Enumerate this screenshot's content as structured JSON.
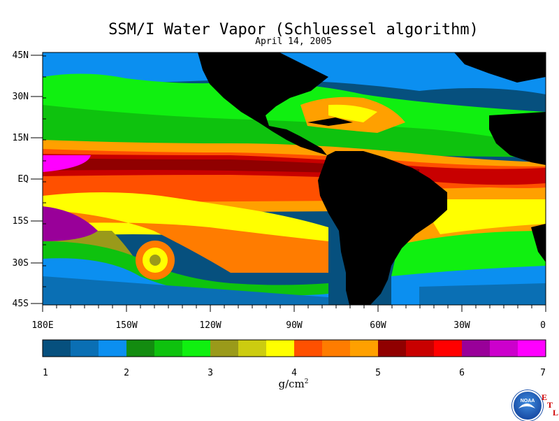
{
  "title": "SSM/I Water Vapor (Schluessel algorithm)",
  "subtitle": "April 14, 2005",
  "lat_labels": [
    "45N",
    "30N",
    "15N",
    "EQ",
    "15S",
    "30S",
    "45S"
  ],
  "lon_labels": [
    "180E",
    "150W",
    "120W",
    "90W",
    "60W",
    "30W",
    "0"
  ],
  "colorbar": {
    "ticks": [
      "1",
      "2",
      "3",
      "4",
      "5",
      "6",
      "7"
    ],
    "units_text": "g/cm",
    "units_sup": "2",
    "colors": [
      "#06507e",
      "#0a6fb4",
      "#0b8ff0",
      "#138c10",
      "#0ec20e",
      "#10f010",
      "#9a9a1a",
      "#cccc10",
      "#ffff00",
      "#ff5000",
      "#ff7c00",
      "#ffa000",
      "#900000",
      "#c80000",
      "#ff0000",
      "#990099",
      "#cc00cc",
      "#ff00ff"
    ]
  },
  "logo": {
    "text": "NOAA",
    "letters": [
      "E",
      "T",
      "L"
    ]
  }
}
